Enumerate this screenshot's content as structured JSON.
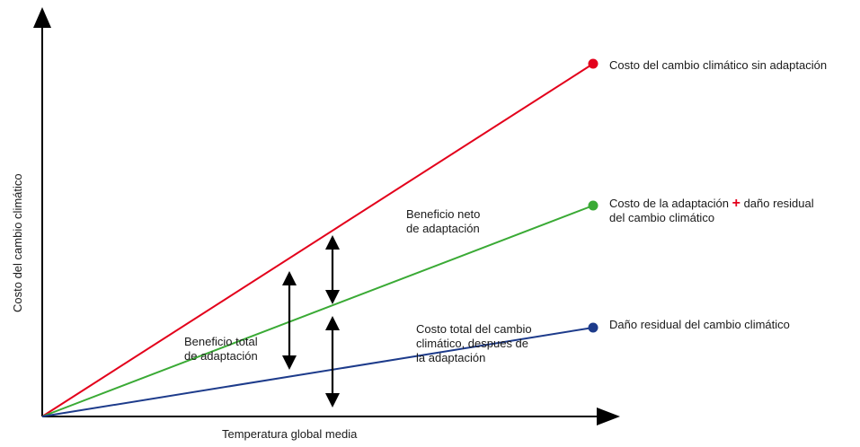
{
  "axes": {
    "x_label": "Temperatura global media",
    "y_label": "Costo del cambio climático"
  },
  "lines": [
    {
      "key": "sin_adaptacion",
      "color": "#e3001b",
      "label_1": "Costo del cambio climático sin adaptación"
    },
    {
      "key": "adaptacion_mas_residual",
      "color": "#3aaa35",
      "label_1": "Costo de la adaptación",
      "plus": "+",
      "label_1b": "daño residual",
      "label_2": "del cambio climático"
    },
    {
      "key": "residual",
      "color": "#1d3b8b",
      "label_1": "Daño residual del cambio climático"
    }
  ],
  "annotations": {
    "neto": [
      "Beneficio neto",
      "de adaptación"
    ],
    "total": [
      "Beneficio total",
      "de adaptación"
    ],
    "costo_total": [
      "Costo total del cambio",
      "climático, despues de",
      "la adaptación"
    ]
  },
  "colors": {
    "axis": "#000000",
    "text": "#1a1a1a",
    "arrow": "#000000"
  }
}
